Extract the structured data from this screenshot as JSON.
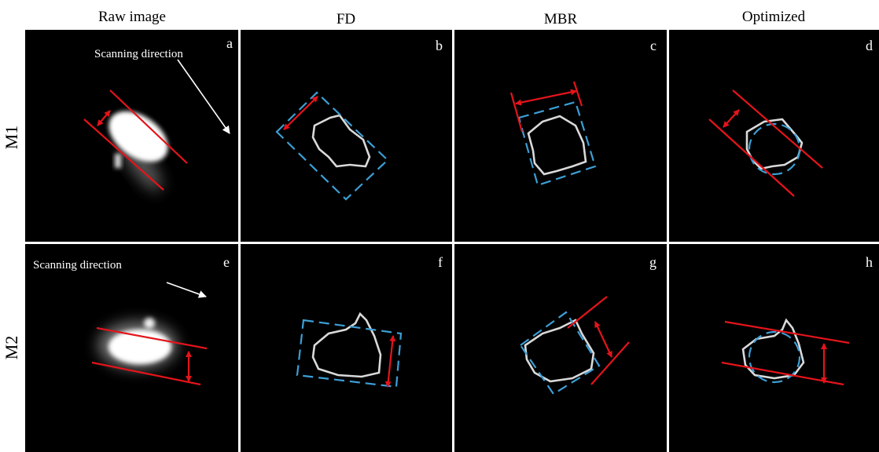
{
  "columns": [
    "Raw image",
    "FD",
    "MBR",
    "Optimized"
  ],
  "rows": [
    "M1",
    "M2"
  ],
  "panels": [
    "a",
    "b",
    "c",
    "d",
    "e",
    "f",
    "g",
    "h"
  ],
  "annotations": [
    "Scanning direction",
    "Scanning direction"
  ]
}
